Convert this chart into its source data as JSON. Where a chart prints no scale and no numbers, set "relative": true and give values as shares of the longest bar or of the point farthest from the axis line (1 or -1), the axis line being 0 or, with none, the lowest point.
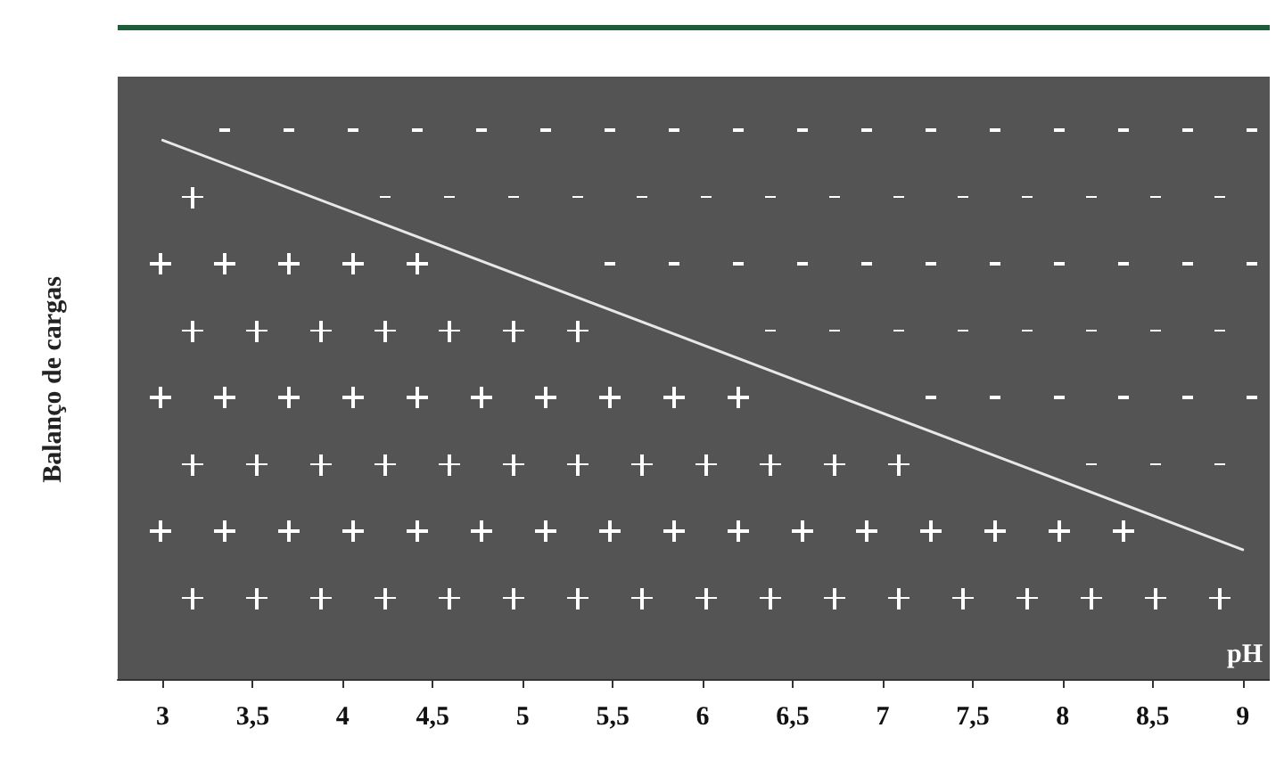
{
  "chart_data": {
    "type": "line",
    "relative": true,
    "xlabel": "pH",
    "ylabel": "Balanço de cargas",
    "x": [
      3,
      9
    ],
    "series": [
      {
        "color": "#e8e8e8",
        "values": [
          1,
          0.24
        ]
      }
    ],
    "xlim": [
      2.75,
      9.15
    ],
    "xticks": [
      3,
      {
        "value": 3.5,
        "label": "3,5"
      },
      4,
      {
        "value": 4.5,
        "label": "4,5"
      },
      5,
      {
        "value": 5.5,
        "label": "5,5"
      },
      6,
      {
        "value": 6.5,
        "label": "6,5"
      },
      7,
      {
        "value": 7.5,
        "label": "7,5"
      },
      8,
      {
        "value": 8.5,
        "label": "8,5"
      },
      9
    ],
    "marker": "none",
    "line_style": "solid"
  }
}
